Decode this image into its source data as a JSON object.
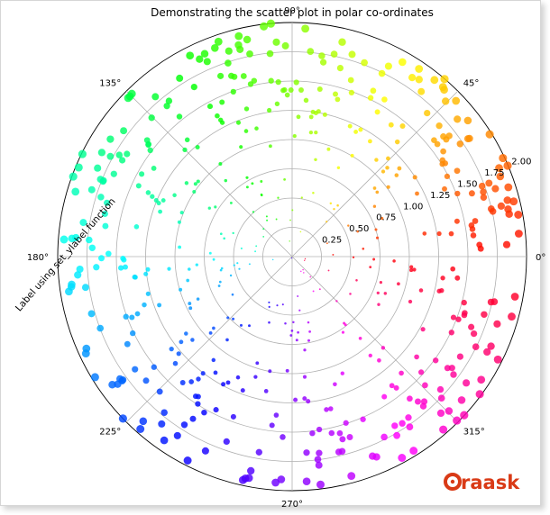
{
  "chart_data": {
    "type": "scatter",
    "projection": "polar",
    "title": "Demonstrating the scatter plot in polar co-ordinates",
    "ylabel": "Label using set_ylabel function",
    "angle_ticks": [
      "0°",
      "45°",
      "90°",
      "135°",
      "180°",
      "225°",
      "270°",
      "315°"
    ],
    "angle_tick_values_deg": [
      0,
      45,
      90,
      135,
      180,
      225,
      270,
      315
    ],
    "radial_ticks": [
      "0.25",
      "0.50",
      "0.75",
      "1.00",
      "1.25",
      "1.50",
      "1.75",
      "2.00"
    ],
    "radial_tick_values": [
      0.25,
      0.5,
      0.75,
      1.0,
      1.25,
      1.5,
      1.75,
      2.0
    ],
    "rlim": [
      0,
      2.0
    ],
    "radial_label_angle_deg": 22.5,
    "grid": true,
    "colormap": "hsv",
    "color_encodes": "theta",
    "size_encodes": "r",
    "n_points": 520,
    "points": []
  },
  "watermark": {
    "text": "Oraask",
    "color": "#d93a16"
  }
}
